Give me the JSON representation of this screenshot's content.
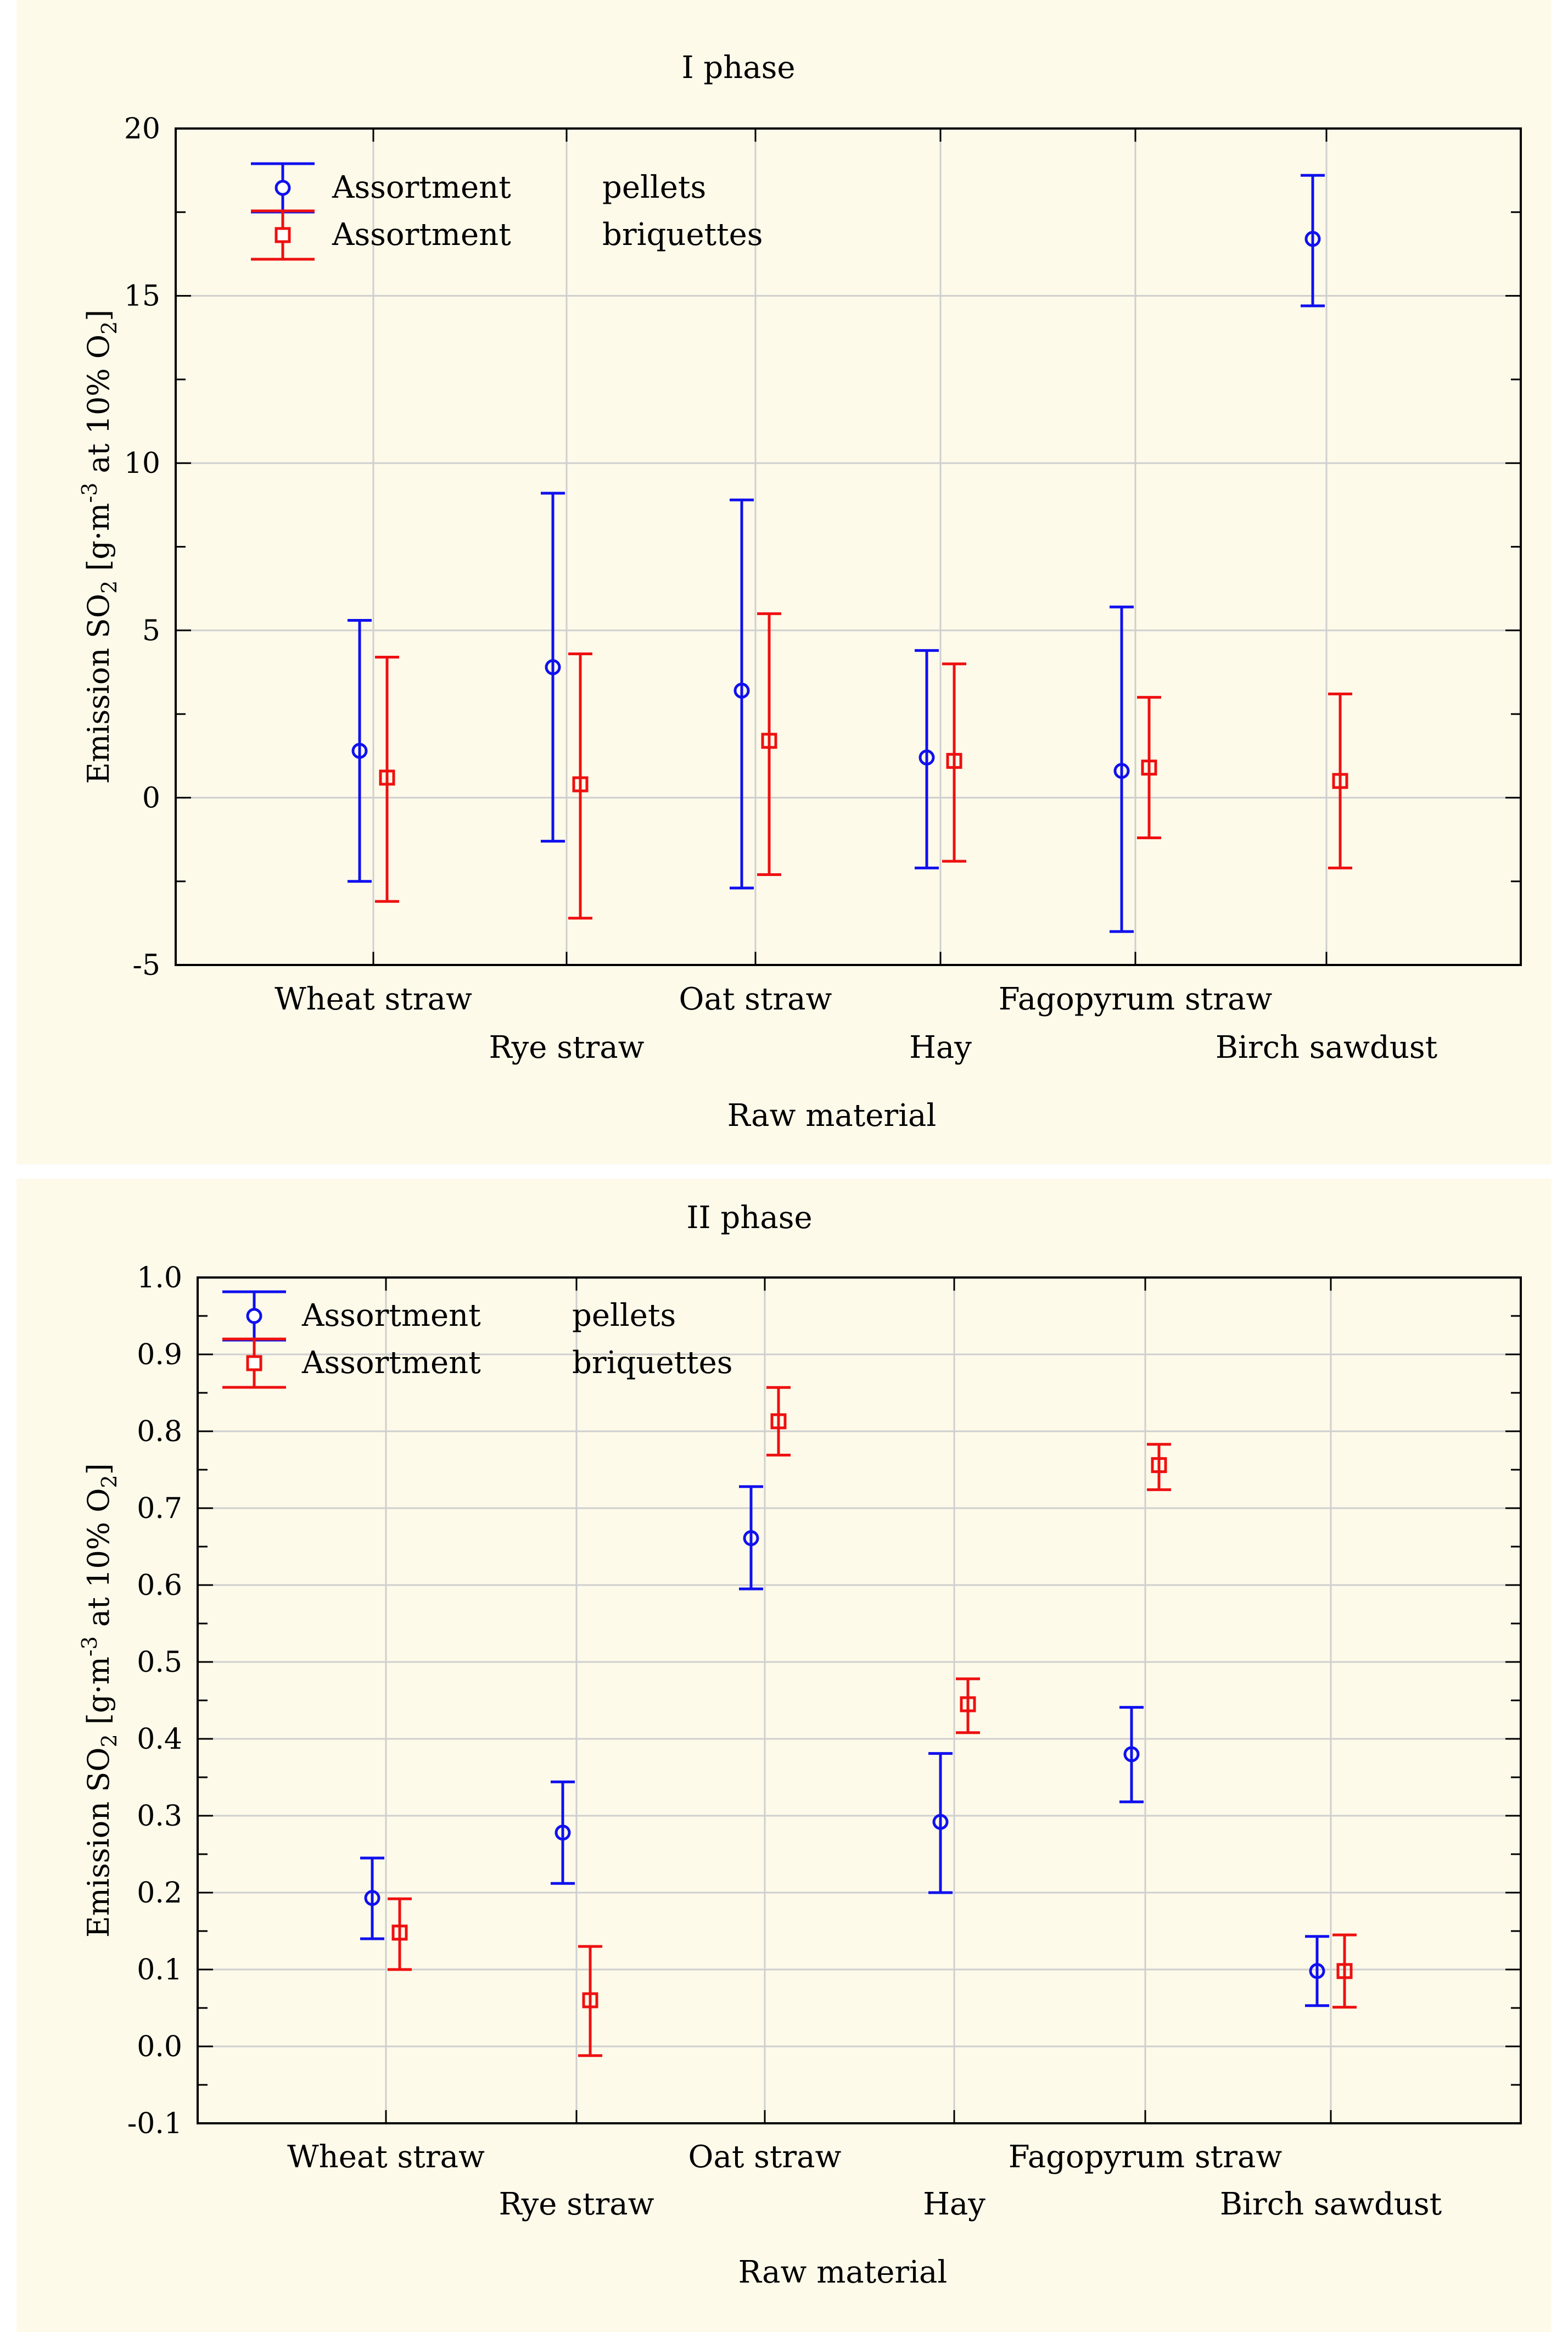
{
  "chart_data": [
    {
      "type": "scatter",
      "title": "I phase",
      "xlabel": "Raw material",
      "ylabel": {
        "main": "Emission SO",
        "sub": "2",
        "mid": " [g·m",
        "sup": "-3",
        "end": " at 10% O",
        "sub2": "2",
        "close": "]"
      },
      "ylim": [
        -5,
        20
      ],
      "yticks": [
        "-5",
        "0",
        "5",
        "10",
        "15",
        "20"
      ],
      "ytick_values": [
        -5,
        0,
        5,
        10,
        15,
        20
      ],
      "grid": true,
      "categories": [
        "Wheat straw",
        "Rye straw",
        "Oat straw",
        "Hay",
        "Fagopyrum straw",
        "Birch sawdust"
      ],
      "legend": [
        {
          "label": "Assortment",
          "value": "pellets"
        },
        {
          "label": "Assortment",
          "value": "briquettes"
        }
      ],
      "series": [
        {
          "name": "pellets",
          "color": "#1010ee",
          "marker": "circle",
          "values": [
            1.4,
            3.9,
            3.2,
            1.2,
            0.8,
            16.7
          ],
          "lower": [
            -2.5,
            -1.3,
            -2.7,
            -2.1,
            -4.0,
            14.7
          ],
          "upper": [
            5.3,
            9.1,
            8.9,
            4.4,
            5.7,
            18.6
          ]
        },
        {
          "name": "briquettes",
          "color": "#ee1010",
          "marker": "square",
          "values": [
            0.6,
            0.4,
            1.7,
            1.1,
            0.9,
            0.5
          ],
          "lower": [
            -3.1,
            -3.6,
            -2.3,
            -1.9,
            -1.2,
            -2.1
          ],
          "upper": [
            4.2,
            4.3,
            5.5,
            4.0,
            3.0,
            3.1
          ]
        }
      ]
    },
    {
      "type": "scatter",
      "title": "II phase",
      "xlabel": "Raw material",
      "ylabel": {
        "main": "Emission SO",
        "sub": "2",
        "mid": " [g·m",
        "sup": "-3",
        "end": " at 10% O",
        "sub2": "2",
        "close": "]"
      },
      "ylim": [
        -0.1,
        1.0
      ],
      "yticks": [
        "-0.1",
        "0.0",
        "0.1",
        "0.2",
        "0.3",
        "0.4",
        "0.5",
        "0.6",
        "0.7",
        "0.8",
        "0.9",
        "1.0"
      ],
      "ytick_values": [
        -0.1,
        0.0,
        0.1,
        0.2,
        0.3,
        0.4,
        0.5,
        0.6,
        0.7,
        0.8,
        0.9,
        1.0
      ],
      "grid": true,
      "categories": [
        "Wheat straw",
        "Rye straw",
        "Oat straw",
        "Hay",
        "Fagopyrum straw",
        "Birch sawdust"
      ],
      "legend": [
        {
          "label": "Assortment",
          "value": "pellets"
        },
        {
          "label": "Assortment",
          "value": "briquettes"
        }
      ],
      "series": [
        {
          "name": "pellets",
          "color": "#1010ee",
          "marker": "circle",
          "values": [
            0.193,
            0.278,
            0.661,
            0.292,
            0.38,
            0.098
          ],
          "lower": [
            0.14,
            0.212,
            0.595,
            0.2,
            0.318,
            0.053
          ],
          "upper": [
            0.245,
            0.344,
            0.728,
            0.381,
            0.441,
            0.143
          ]
        },
        {
          "name": "briquettes",
          "color": "#ee1010",
          "marker": "square",
          "values": [
            0.148,
            0.06,
            0.813,
            0.445,
            0.756,
            0.098
          ],
          "lower": [
            0.1,
            -0.012,
            0.769,
            0.408,
            0.724,
            0.051
          ],
          "upper": [
            0.192,
            0.13,
            0.857,
            0.478,
            0.783,
            0.145
          ]
        }
      ]
    }
  ]
}
